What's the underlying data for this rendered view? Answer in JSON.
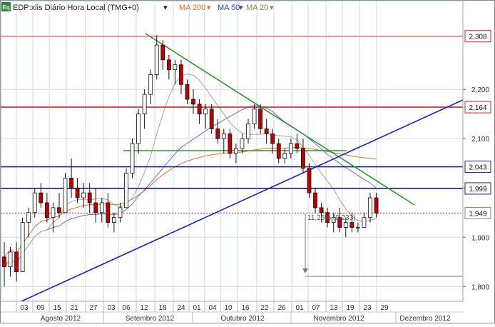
{
  "header": {
    "symbol_badge": "Eq",
    "title": "EDP:xlis Diário Hora Local (TMG+0)",
    "indicators": [
      {
        "label": "MA 200",
        "color": "#e8702a"
      },
      {
        "label": "MA 50",
        "color": "#2e3fd8"
      },
      {
        "label": "MA 20",
        "color": "#8a8a3a"
      }
    ]
  },
  "colors": {
    "up_candle": "#ffffff",
    "down_candle": "#c00000",
    "grid": "#cfd8e6",
    "green_trend": "#2a9a2a",
    "blue_trend": "#1a22c8",
    "red_level": "#e02020",
    "navy_level": "#1a22a8",
    "ma200": "#e8702a",
    "ma50": "#6a6ae8",
    "ma20": "#a8a890"
  },
  "chart_data": {
    "type": "candlestick",
    "ylim": [
      1.77,
      2.38
    ],
    "y_ticks": [
      1.8,
      1.9,
      2.0,
      2.1,
      2.2
    ],
    "y_tick_labels": [
      "1,800",
      "1,900",
      "2,000",
      "2,100",
      "2,200"
    ],
    "x_ticks": [
      "03",
      "09",
      "15",
      "21",
      "27",
      "03",
      "06",
      "12",
      "18",
      "24",
      "01",
      "04",
      "10",
      "16",
      "22",
      "26",
      "01",
      "07",
      "13",
      "19",
      "23",
      "29"
    ],
    "month_labels": [
      "Agosto 2012",
      "Setembro 2012",
      "Outubro 2012",
      "Novembro 2012",
      "Dezembro 2012"
    ],
    "levels": [
      {
        "value": 2.308,
        "label": "2,308",
        "kind": "red-thin"
      },
      {
        "value": 2.164,
        "label": "2,164",
        "kind": "red"
      },
      {
        "value": 2.043,
        "label": "2,043",
        "kind": "navy"
      },
      {
        "value": 1.999,
        "label": "1,999",
        "kind": "navy"
      },
      {
        "value": 1.949,
        "label": "1,949",
        "kind": "last-dotted"
      }
    ],
    "annotation": "11,26% (0,233)",
    "candles": [
      [
        1.86,
        1.89,
        1.8,
        1.84
      ],
      [
        1.84,
        1.88,
        1.82,
        1.87
      ],
      [
        1.87,
        1.89,
        1.81,
        1.83
      ],
      [
        1.83,
        1.94,
        1.83,
        1.93
      ],
      [
        1.93,
        1.96,
        1.9,
        1.95
      ],
      [
        1.95,
        2.0,
        1.94,
        1.99
      ],
      [
        1.99,
        2.01,
        1.96,
        1.97
      ],
      [
        1.97,
        1.99,
        1.93,
        1.94
      ],
      [
        1.94,
        1.97,
        1.91,
        1.96
      ],
      [
        1.96,
        1.99,
        1.94,
        1.95
      ],
      [
        1.95,
        2.03,
        1.95,
        2.02
      ],
      [
        2.02,
        2.06,
        1.98,
        2.0
      ],
      [
        2.0,
        2.02,
        1.97,
        1.98
      ],
      [
        1.98,
        2.01,
        1.96,
        1.99
      ],
      [
        1.99,
        2.01,
        1.95,
        1.97
      ],
      [
        1.97,
        2.0,
        1.93,
        1.95
      ],
      [
        1.95,
        1.98,
        1.93,
        1.97
      ],
      [
        1.97,
        1.99,
        1.92,
        1.93
      ],
      [
        1.93,
        1.95,
        1.91,
        1.94
      ],
      [
        1.94,
        1.97,
        1.93,
        1.96
      ],
      [
        1.96,
        2.04,
        1.96,
        2.03
      ],
      [
        2.03,
        2.1,
        2.02,
        2.09
      ],
      [
        2.09,
        2.16,
        2.07,
        2.15
      ],
      [
        2.15,
        2.2,
        2.12,
        2.19
      ],
      [
        2.19,
        2.24,
        2.17,
        2.23
      ],
      [
        2.23,
        2.31,
        2.22,
        2.29
      ],
      [
        2.29,
        2.3,
        2.24,
        2.26
      ],
      [
        2.26,
        2.27,
        2.22,
        2.24
      ],
      [
        2.24,
        2.26,
        2.21,
        2.25
      ],
      [
        2.25,
        2.26,
        2.19,
        2.21
      ],
      [
        2.21,
        2.22,
        2.17,
        2.18
      ],
      [
        2.18,
        2.2,
        2.15,
        2.17
      ],
      [
        2.17,
        2.18,
        2.13,
        2.15
      ],
      [
        2.15,
        2.17,
        2.12,
        2.16
      ],
      [
        2.16,
        2.17,
        2.11,
        2.12
      ],
      [
        2.12,
        2.14,
        2.09,
        2.1
      ],
      [
        2.1,
        2.12,
        2.07,
        2.11
      ],
      [
        2.11,
        2.12,
        2.06,
        2.07
      ],
      [
        2.07,
        2.09,
        2.05,
        2.08
      ],
      [
        2.08,
        2.11,
        2.07,
        2.1
      ],
      [
        2.1,
        2.14,
        2.09,
        2.13
      ],
      [
        2.13,
        2.17,
        2.12,
        2.16
      ],
      [
        2.16,
        2.17,
        2.11,
        2.12
      ],
      [
        2.12,
        2.14,
        2.09,
        2.11
      ],
      [
        2.11,
        2.12,
        2.07,
        2.09
      ],
      [
        2.09,
        2.1,
        2.05,
        2.06
      ],
      [
        2.06,
        2.08,
        2.05,
        2.07
      ],
      [
        2.07,
        2.1,
        2.06,
        2.09
      ],
      [
        2.09,
        2.11,
        2.07,
        2.08
      ],
      [
        2.08,
        2.1,
        2.03,
        2.04
      ],
      [
        2.04,
        2.05,
        1.98,
        1.99
      ],
      [
        1.99,
        2.0,
        1.95,
        1.96
      ],
      [
        1.96,
        1.97,
        1.93,
        1.95
      ],
      [
        1.95,
        1.96,
        1.92,
        1.93
      ],
      [
        1.93,
        1.95,
        1.91,
        1.94
      ],
      [
        1.94,
        1.96,
        1.91,
        1.92
      ],
      [
        1.92,
        1.94,
        1.9,
        1.93
      ],
      [
        1.93,
        1.95,
        1.91,
        1.92
      ],
      [
        1.92,
        1.93,
        1.91,
        1.92
      ],
      [
        1.92,
        1.95,
        1.92,
        1.94
      ],
      [
        1.94,
        1.99,
        1.93,
        1.98
      ],
      [
        1.98,
        1.99,
        1.94,
        1.949
      ]
    ]
  }
}
